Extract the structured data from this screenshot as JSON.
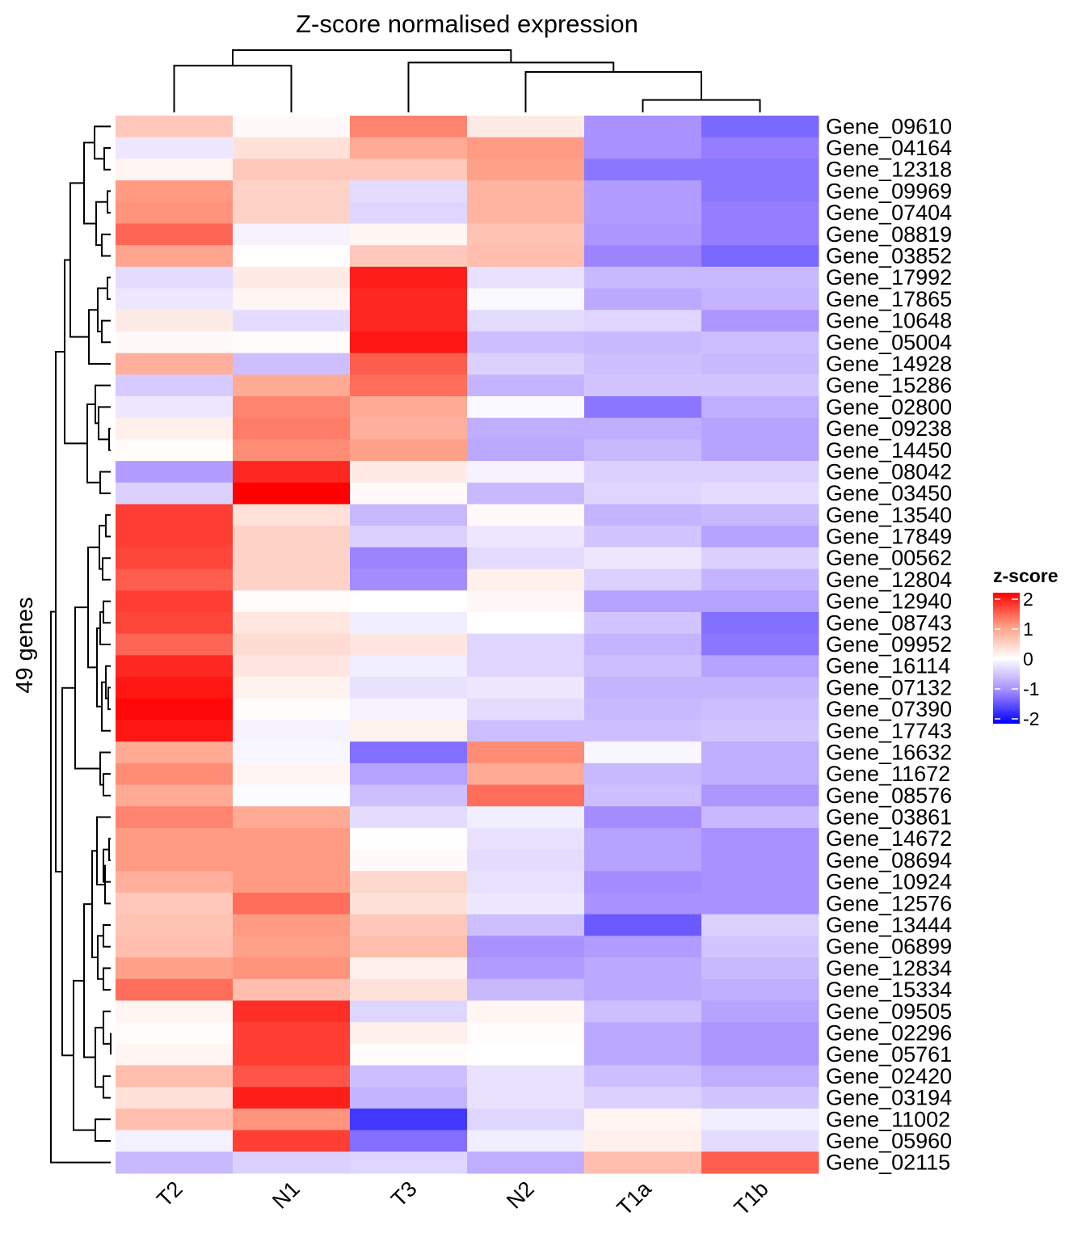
{
  "chart_data": {
    "type": "heatmap",
    "title": "Z-score normalised expression",
    "ylabel": "49 genes",
    "xlabel": "",
    "columns": [
      "T2",
      "N1",
      "T3",
      "N2",
      "T1a",
      "T1b"
    ],
    "rows": [
      "Gene_09610",
      "Gene_04164",
      "Gene_12318",
      "Gene_09969",
      "Gene_07404",
      "Gene_08819",
      "Gene_03852",
      "Gene_17992",
      "Gene_17865",
      "Gene_10648",
      "Gene_05004",
      "Gene_14928",
      "Gene_15286",
      "Gene_02800",
      "Gene_09238",
      "Gene_14450",
      "Gene_08042",
      "Gene_03450",
      "Gene_13540",
      "Gene_17849",
      "Gene_00562",
      "Gene_12804",
      "Gene_12940",
      "Gene_08743",
      "Gene_09952",
      "Gene_16114",
      "Gene_07132",
      "Gene_07390",
      "Gene_17743",
      "Gene_16632",
      "Gene_11672",
      "Gene_08576",
      "Gene_03861",
      "Gene_14672",
      "Gene_08694",
      "Gene_10924",
      "Gene_12576",
      "Gene_13444",
      "Gene_06899",
      "Gene_12834",
      "Gene_15334",
      "Gene_09505",
      "Gene_02296",
      "Gene_05761",
      "Gene_02420",
      "Gene_03194",
      "Gene_11002",
      "Gene_05960",
      "Gene_02115"
    ],
    "values": [
      [
        0.55,
        0.05,
        1.15,
        0.2,
        -0.95,
        -1.25
      ],
      [
        -0.2,
        0.3,
        0.85,
        1.0,
        -0.95,
        -1.1
      ],
      [
        0.1,
        0.55,
        0.55,
        0.95,
        -1.15,
        -1.15
      ],
      [
        1.0,
        0.45,
        -0.3,
        0.75,
        -0.85,
        -1.15
      ],
      [
        1.05,
        0.45,
        -0.35,
        0.75,
        -0.85,
        -1.1
      ],
      [
        1.35,
        -0.1,
        0.1,
        0.6,
        -0.9,
        -1.1
      ],
      [
        0.9,
        0.02,
        0.55,
        0.65,
        -1.05,
        -1.25
      ],
      [
        -0.3,
        0.2,
        1.8,
        -0.25,
        -0.6,
        -0.6
      ],
      [
        -0.2,
        0.1,
        1.75,
        -0.05,
        -0.75,
        -0.65
      ],
      [
        0.2,
        -0.3,
        1.75,
        -0.3,
        -0.35,
        -0.9
      ],
      [
        0.05,
        0.03,
        1.85,
        -0.55,
        -0.6,
        -0.55
      ],
      [
        0.8,
        -0.55,
        1.4,
        -0.4,
        -0.55,
        -0.6
      ],
      [
        -0.45,
        0.85,
        1.3,
        -0.65,
        -0.5,
        -0.5
      ],
      [
        -0.2,
        1.15,
        0.85,
        -0.05,
        -1.15,
        -0.7
      ],
      [
        0.15,
        1.2,
        0.8,
        -0.7,
        -0.7,
        -0.8
      ],
      [
        0.03,
        1.1,
        0.95,
        -0.75,
        -0.6,
        -0.8
      ],
      [
        -0.85,
        1.75,
        0.2,
        -0.1,
        -0.4,
        -0.4
      ],
      [
        -0.4,
        2.0,
        0.05,
        -0.6,
        -0.35,
        -0.3
      ],
      [
        1.6,
        0.3,
        -0.6,
        0.05,
        -0.65,
        -0.6
      ],
      [
        1.6,
        0.45,
        -0.4,
        -0.2,
        -0.5,
        -0.8
      ],
      [
        1.55,
        0.45,
        -1.05,
        -0.3,
        -0.2,
        -0.4
      ],
      [
        1.4,
        0.45,
        -1.0,
        0.15,
        -0.4,
        -0.65
      ],
      [
        1.6,
        0.03,
        0.0,
        0.08,
        -0.8,
        -0.8
      ],
      [
        1.55,
        0.25,
        -0.15,
        0.0,
        -0.5,
        -1.2
      ],
      [
        1.35,
        0.35,
        0.25,
        -0.35,
        -0.65,
        -1.15
      ],
      [
        1.75,
        0.25,
        -0.15,
        -0.35,
        -0.55,
        -0.8
      ],
      [
        1.85,
        0.12,
        -0.25,
        -0.2,
        -0.65,
        -0.65
      ],
      [
        1.95,
        0.03,
        -0.1,
        -0.3,
        -0.6,
        -0.55
      ],
      [
        1.85,
        -0.1,
        0.12,
        -0.55,
        -0.55,
        -0.5
      ],
      [
        0.85,
        -0.08,
        -1.2,
        1.1,
        -0.08,
        -0.7
      ],
      [
        1.1,
        0.1,
        -0.8,
        0.85,
        -0.6,
        -0.7
      ],
      [
        0.85,
        -0.03,
        -0.55,
        1.3,
        -0.55,
        -0.9
      ],
      [
        1.15,
        0.85,
        -0.3,
        -0.15,
        -1.0,
        -0.6
      ],
      [
        1.0,
        1.0,
        0.02,
        -0.25,
        -0.8,
        -0.95
      ],
      [
        1.0,
        1.0,
        0.05,
        -0.3,
        -0.8,
        -0.95
      ],
      [
        0.8,
        1.0,
        0.4,
        -0.25,
        -1.0,
        -0.95
      ],
      [
        0.55,
        1.3,
        0.3,
        -0.2,
        -0.95,
        -0.95
      ],
      [
        0.6,
        1.0,
        0.55,
        -0.55,
        -1.35,
        -0.4
      ],
      [
        0.65,
        0.95,
        0.65,
        -0.95,
        -0.85,
        -0.5
      ],
      [
        0.95,
        1.05,
        0.15,
        -0.85,
        -0.75,
        -0.6
      ],
      [
        1.3,
        0.65,
        0.3,
        -0.6,
        -0.75,
        -0.7
      ],
      [
        0.1,
        1.7,
        -0.35,
        0.1,
        -0.55,
        -0.8
      ],
      [
        0.03,
        1.6,
        0.15,
        0.03,
        -0.75,
        -0.9
      ],
      [
        0.1,
        1.6,
        0.03,
        0.0,
        -0.75,
        -0.9
      ],
      [
        0.65,
        1.45,
        -0.55,
        -0.25,
        -0.55,
        -0.7
      ],
      [
        0.3,
        1.8,
        -0.65,
        -0.25,
        -0.4,
        -0.5
      ],
      [
        0.65,
        1.05,
        -1.6,
        -0.35,
        0.1,
        -0.15
      ],
      [
        -0.12,
        1.6,
        -1.2,
        -0.15,
        0.15,
        -0.3
      ],
      [
        -0.6,
        -0.4,
        -0.35,
        -0.7,
        0.65,
        1.4
      ]
    ],
    "color_scale": {
      "title": "z-score",
      "ticks": [
        2,
        1,
        0,
        -1,
        -2
      ],
      "range": [
        -2,
        2
      ],
      "colors": {
        "high": "#FF0000",
        "mid": "#FFFFFF",
        "low": "#0000FF"
      }
    },
    "column_dendrogram": {
      "order": [
        "T2",
        "N1",
        "T3",
        "N2",
        "T1a",
        "T1b"
      ],
      "merges": [
        {
          "left": "T1a",
          "right": "T1b",
          "height": 0.2
        },
        {
          "left": "N2",
          "right": "T1a+T1b",
          "height": 0.65
        },
        {
          "left": "T2",
          "right": "N1",
          "height": 0.75
        },
        {
          "left": "T3",
          "right": "N2+T1a+T1b",
          "height": 0.8
        },
        {
          "left": "T2+N1",
          "right": "T3+N2+T1a+T1b",
          "height": 1.0
        }
      ]
    }
  }
}
